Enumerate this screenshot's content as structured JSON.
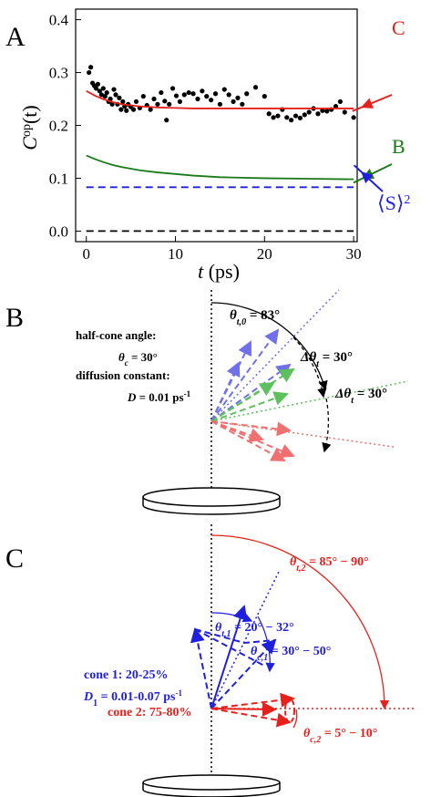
{
  "chart_data": {
    "type": "line",
    "panel_label": "A",
    "xlabel": {
      "symbol": "t",
      "text": " (ps)"
    },
    "ylabel": {
      "symbol": "C",
      "superscript": "op",
      "text": "(t)"
    },
    "xlim": [
      -1.2,
      30.4
    ],
    "ylim": [
      -0.02,
      0.42
    ],
    "xticks": [
      0,
      10,
      20,
      30
    ],
    "yticks": [
      {
        "value": 0,
        "label": "0.0"
      },
      0.1,
      0.2,
      0.3,
      0.4
    ],
    "series": [
      {
        "mode": "markers",
        "color": "#000000",
        "x": [
          0.3,
          0.5,
          0.7,
          0.9,
          1.1,
          1.3,
          1.5,
          1.7,
          1.9,
          2.1,
          2.3,
          2.5,
          2.7,
          2.9,
          3.1,
          3.3,
          3.5,
          3.7,
          3.9,
          4.1,
          4.3,
          4.5,
          4.7,
          5.0,
          5.3,
          5.6,
          6.0,
          6.4,
          6.8,
          7.2,
          7.6,
          8.0,
          8.4,
          8.8,
          9.0,
          9.3,
          9.7,
          10.1,
          10.5,
          11.0,
          11.5,
          12.0,
          12.5,
          13.0,
          13.5,
          14.0,
          14.5,
          15.0,
          15.5,
          16.0,
          16.5,
          17.0,
          17.5,
          18.0,
          19.0,
          20.0,
          20.5,
          21.0,
          21.5,
          22.0,
          22.5,
          23.0,
          23.5,
          24.0,
          24.5,
          25.0,
          25.5,
          26.0,
          26.5,
          27.0,
          27.5,
          28.0,
          28.5,
          29.0,
          30.0
        ],
        "values": [
          0.3,
          0.31,
          0.28,
          0.275,
          0.27,
          0.278,
          0.265,
          0.258,
          0.27,
          0.255,
          0.262,
          0.245,
          0.25,
          0.24,
          0.268,
          0.258,
          0.24,
          0.252,
          0.23,
          0.245,
          0.236,
          0.228,
          0.24,
          0.235,
          0.23,
          0.245,
          0.233,
          0.255,
          0.238,
          0.23,
          0.25,
          0.24,
          0.262,
          0.246,
          0.21,
          0.24,
          0.27,
          0.256,
          0.245,
          0.258,
          0.262,
          0.26,
          0.25,
          0.265,
          0.255,
          0.248,
          0.26,
          0.24,
          0.268,
          0.258,
          0.245,
          0.252,
          0.24,
          0.26,
          0.272,
          0.255,
          0.222,
          0.215,
          0.218,
          0.23,
          0.215,
          0.21,
          0.218,
          0.214,
          0.22,
          0.225,
          0.232,
          0.222,
          0.228,
          0.227,
          0.23,
          0.236,
          0.245,
          0.225,
          0.215
        ]
      },
      {
        "mode": "line",
        "color": "#e8201c",
        "x": [
          0,
          1,
          2,
          3,
          4,
          5,
          6,
          8,
          10,
          12,
          15,
          20,
          25,
          30
        ],
        "values": [
          0.265,
          0.256,
          0.249,
          0.244,
          0.24,
          0.238,
          0.236,
          0.234,
          0.233,
          0.232,
          0.232,
          0.232,
          0.232,
          0.232
        ]
      },
      {
        "mode": "line",
        "color": "#1a7a1a",
        "x": [
          0,
          1,
          2,
          3,
          4,
          5,
          6,
          8,
          10,
          12,
          15,
          20,
          25,
          30
        ],
        "values": [
          0.143,
          0.136,
          0.13,
          0.125,
          0.121,
          0.118,
          0.115,
          0.111,
          0.108,
          0.105,
          0.102,
          0.1,
          0.099,
          0.098
        ]
      },
      {
        "mode": "line",
        "dash": true,
        "color": "#1f1fe0",
        "x": [
          0,
          30
        ],
        "values": [
          0.083,
          0.083
        ]
      },
      {
        "mode": "line",
        "dash": true,
        "color": "#000000",
        "x": [
          0,
          30
        ],
        "values": [
          0,
          0
        ]
      }
    ],
    "annotations": [
      {
        "text": "C",
        "color": "#e8201c"
      },
      {
        "text": "B",
        "color": "#1a7a1a"
      },
      {
        "text": "⟨S⟩",
        "superscript": "2",
        "color": "#1f1fe0"
      }
    ]
  },
  "panel_b": {
    "label": "B",
    "theta_t0": {
      "symbol": "θ",
      "subscript": "t,0",
      "text": " = 83°"
    },
    "half_cone": "half-cone angle:",
    "theta_c": {
      "symbol": "θ",
      "subscript": "c",
      "text": " = 30°"
    },
    "diffusion": "diffusion constant:",
    "d": {
      "symbol": "D",
      "text": " = 0.01 ps",
      "superscript": "-1"
    },
    "delta_1": {
      "symbol": "Δθ",
      "subscript": "t",
      "text": " = 30°"
    },
    "delta_2": {
      "symbol": "Δθ",
      "subscript": "t",
      "text": " = 30°"
    }
  },
  "panel_c": {
    "label": "C",
    "theta_t2": {
      "symbol": "θ",
      "subscript": "t,2",
      "text": " = 85° − 90°"
    },
    "theta_t1": {
      "symbol": "θ",
      "subscript": "t,1",
      "text": " = 20° − 32°"
    },
    "theta_c1": {
      "symbol": "θ",
      "subscript": "c,1",
      "text": " = 30° − 50°"
    },
    "cone1": "cone 1: 20-25%",
    "d1": {
      "symbol": "D",
      "subscript": "1",
      "text": " = 0.01-0.07 ps",
      "superscript": "-1"
    },
    "cone2": "cone 2: 75-80%",
    "theta_c2": {
      "symbol": "θ",
      "subscript": "c,2",
      "text": " = 5° − 10°"
    }
  }
}
